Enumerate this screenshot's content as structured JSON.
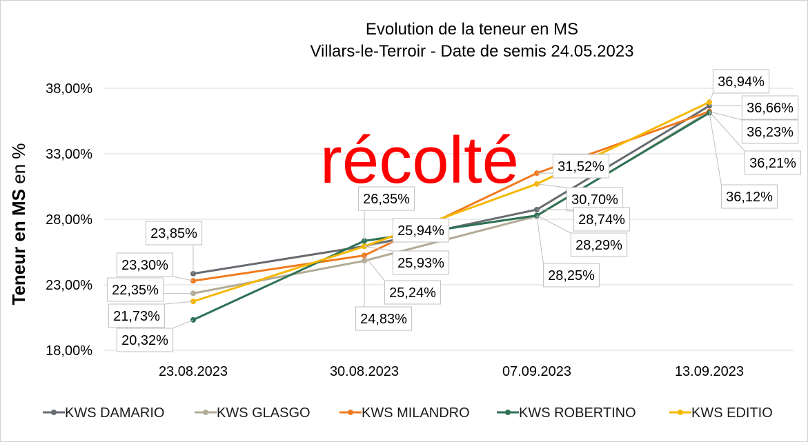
{
  "chart_data": {
    "type": "line",
    "title": "Evolution de la teneur en MS",
    "subtitle": "Villars-le-Terroir - Date de semis 24.05.2023",
    "xlabel": "",
    "ylabel": "Teneur en MS en %",
    "ylabel_bold": "Teneur en MS",
    "ylabel_rest": " en %",
    "categories": [
      "23.08.2023",
      "30.08.2023",
      "07.09.2023",
      "13.09.2023"
    ],
    "ylim": [
      18,
      40
    ],
    "yticks": [
      18,
      23,
      28,
      33,
      38
    ],
    "ytick_labels": [
      "18,00%",
      "23,00%",
      "28,00%",
      "33,00%",
      "38,00%"
    ],
    "grid": true,
    "legend_position": "bottom",
    "series": [
      {
        "name": "KWS DAMARIO",
        "color": "#666b70",
        "values": [
          23.85,
          25.94,
          28.74,
          36.66
        ],
        "labels": [
          "23,85%",
          "25,94%",
          "28,74%",
          "36,66%"
        ]
      },
      {
        "name": "KWS GLASGO",
        "color": "#b2ab96",
        "values": [
          22.35,
          24.83,
          28.25,
          36.21
        ],
        "labels": [
          "22,35%",
          "24,83%",
          "28,25%",
          "36,21%"
        ]
      },
      {
        "name": "KWS MILANDRO",
        "color": "#f07a1e",
        "values": [
          23.3,
          25.24,
          31.52,
          36.23
        ],
        "labels": [
          "23,30%",
          "25,24%",
          "31,52%",
          "36,23%"
        ]
      },
      {
        "name": "KWS ROBERTINO",
        "color": "#2e7256",
        "values": [
          20.32,
          26.35,
          28.29,
          36.12
        ],
        "labels": [
          "20,32%",
          "26,35%",
          "28,29%",
          "36,12%"
        ]
      },
      {
        "name": "KWS EDITIO",
        "color": "#f5b800",
        "values": [
          21.73,
          25.93,
          30.7,
          36.94
        ],
        "labels": [
          "21,73%",
          "25,93%",
          "30,70%",
          "36,94%"
        ]
      }
    ],
    "annotations": [
      "récolté"
    ]
  }
}
